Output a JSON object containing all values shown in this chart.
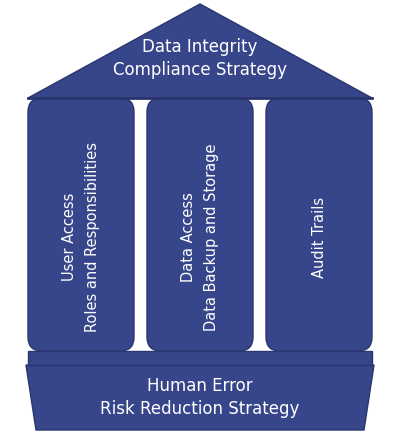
{
  "bg_color": "#ffffff",
  "house_color": "#37468a",
  "text_color": "#ffffff",
  "outline_color": "#2a3570",
  "roof_text": "Data Integrity\nCompliance Strategy",
  "foundation_text": "Human Error\nRisk Reduction Strategy",
  "pillars": [
    {
      "lines": [
        "User Access",
        "Roles and Responsibilities"
      ]
    },
    {
      "lines": [
        "Data Access",
        "Data Backup and Storage"
      ]
    },
    {
      "lines": [
        "Audit Trails"
      ]
    }
  ],
  "roof_fontsize": 12,
  "foundation_fontsize": 12,
  "pillar_fontsize": 10.5,
  "fig_width": 4.0,
  "fig_height": 4.36,
  "dpi": 100
}
